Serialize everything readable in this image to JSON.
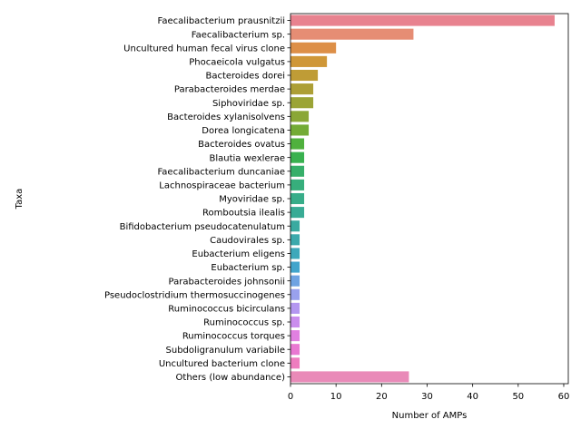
{
  "chart_data": {
    "type": "bar",
    "orientation": "horizontal",
    "xlabel": "Number of AMPs",
    "ylabel": "Taxa",
    "xlim": [
      0,
      61
    ],
    "xticks": [
      0,
      10,
      20,
      30,
      40,
      50,
      60
    ],
    "grid": false,
    "categories": [
      "Faecalibacterium prausnitzii",
      "Faecalibacterium sp.",
      "Uncultured human fecal virus clone",
      "Phocaeicola vulgatus",
      "Bacteroides dorei",
      "Parabacteroides merdae",
      "Siphoviridae sp.",
      "Bacteroides xylanisolvens",
      "Dorea longicatena",
      "Bacteroides ovatus",
      "Blautia wexlerae",
      "Faecalibacterium duncaniae",
      "Lachnospiraceae bacterium",
      "Myoviridae sp.",
      "Romboutsia ilealis",
      "Bifidobacterium pseudocatenulatum",
      "Caudovirales sp.",
      "Eubacterium eligens",
      "Eubacterium sp.",
      "Parabacteroides johnsonii",
      "Pseudoclostridium thermosuccinogenes",
      "Ruminococcus bicirculans",
      "Ruminococcus sp.",
      "Ruminococcus torques",
      "Subdoligranulum variabile",
      "Uncultured bacterium clone",
      "Others (low abundance)"
    ],
    "values": [
      58,
      27,
      10,
      8,
      6,
      5,
      5,
      4,
      4,
      3,
      3,
      3,
      3,
      3,
      3,
      2,
      2,
      2,
      2,
      2,
      2,
      2,
      2,
      2,
      2,
      2,
      26
    ],
    "colors": [
      "#e8828f",
      "#e68d74",
      "#dd8f47",
      "#cf9738",
      "#bf9c36",
      "#ad9f36",
      "#9ba436",
      "#8aa736",
      "#73ab35",
      "#50b13d",
      "#39b14f",
      "#36af69",
      "#37ae7c",
      "#38ad89",
      "#39ab95",
      "#3aaaa0",
      "#3ca9ac",
      "#3ea8ba",
      "#42a5cc",
      "#6fa3e2",
      "#99a1ee",
      "#b497f0",
      "#ca8ded",
      "#e080e0",
      "#e978d2",
      "#ee7dbf",
      "#e98ab8"
    ]
  }
}
